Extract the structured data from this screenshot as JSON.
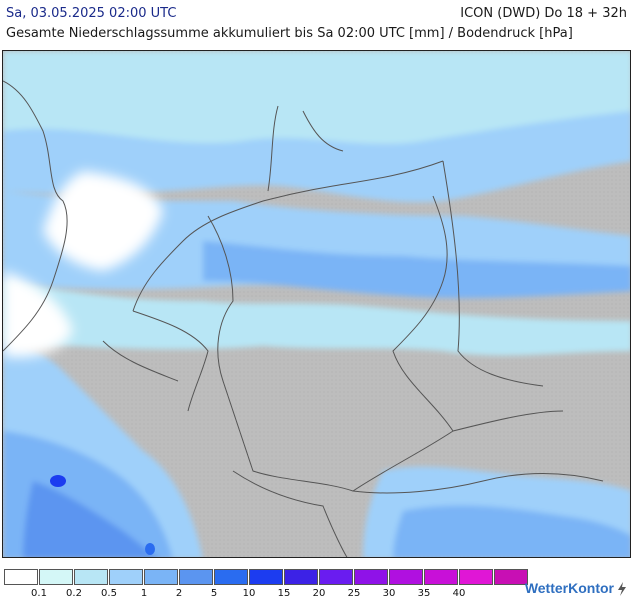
{
  "header": {
    "date_label": "Sa, 03.05.2025 02:00 UTC",
    "model_label": "ICON (DWD) Do 18 + 32h",
    "subtitle": "Gesamte Niederschlagssumme akkumuliert bis Sa 02:00 UTC [mm] / Bodendruck [hPa]"
  },
  "legend": {
    "colors": [
      "#ffffff",
      "#d4f7f7",
      "#b8e6f5",
      "#9fd0fa",
      "#7ab4f6",
      "#5b95f0",
      "#2a6cf0",
      "#1c3cf0",
      "#3c22e6",
      "#6a1cf0",
      "#8f12e8",
      "#b010e0",
      "#c810d8",
      "#e016d6",
      "#c80fb4"
    ],
    "ticks": [
      "0.1",
      "0.2",
      "0.5",
      "1",
      "2",
      "5",
      "10",
      "15",
      "20",
      "25",
      "30",
      "35",
      "40"
    ]
  },
  "brand": {
    "name": "WetterKontor",
    "icon": "lightning-bolt-icon"
  }
}
